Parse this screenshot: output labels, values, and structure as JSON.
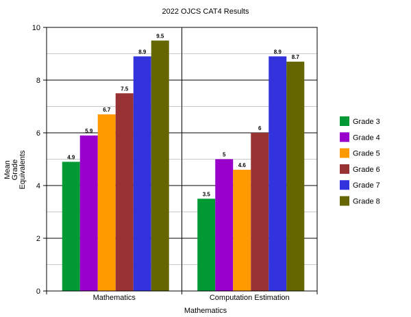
{
  "chart_data": {
    "type": "bar",
    "title": "2022 OJCS CAT4 Results",
    "xlabel": "Mathematics",
    "ylabel_lines": [
      "Mean",
      "Grade",
      "Equivalents"
    ],
    "categories": [
      "Mathematics",
      "Computation Estimation"
    ],
    "ylim": [
      0,
      10
    ],
    "y_ticks": [
      0,
      2,
      4,
      6,
      8,
      10
    ],
    "grid": true,
    "legend_position": "right",
    "series": [
      {
        "name": "Grade 3",
        "color": "#009933",
        "values": [
          4.9,
          3.5
        ],
        "labels": [
          "4.9",
          "3.5"
        ]
      },
      {
        "name": "Grade 4",
        "color": "#9900cc",
        "values": [
          5.9,
          5
        ],
        "labels": [
          "5.9",
          "5"
        ]
      },
      {
        "name": "Grade 5",
        "color": "#ff9900",
        "values": [
          6.7,
          4.6
        ],
        "labels": [
          "6.7",
          "4.6"
        ]
      },
      {
        "name": "Grade 6",
        "color": "#993333",
        "values": [
          7.5,
          6
        ],
        "labels": [
          "7.5",
          "6"
        ]
      },
      {
        "name": "Grade 7",
        "color": "#3333dd",
        "values": [
          8.9,
          8.9
        ],
        "labels": [
          "8.9",
          "8.9"
        ]
      },
      {
        "name": "Grade 8",
        "color": "#666600",
        "values": [
          9.5,
          8.7
        ],
        "labels": [
          "9.5",
          "8.7"
        ]
      }
    ]
  }
}
